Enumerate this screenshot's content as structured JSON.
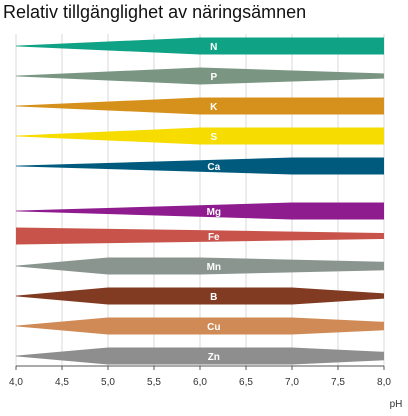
{
  "chart_data": {
    "type": "area",
    "title": "Relativ tillgänglighet av näringsämnen",
    "xlabel": "pH",
    "ylabel": "",
    "xlim": [
      4.0,
      8.0
    ],
    "x_ticks": [
      "4,0",
      "4,5",
      "5,0",
      "5,5",
      "6,0",
      "6,5",
      "7,0",
      "7,5",
      "8,0"
    ],
    "grid": true,
    "series": [
      {
        "name": "N",
        "color": "#10a284",
        "label_color": "#ffffff",
        "x": [
          4.0,
          6.0,
          8.0
        ],
        "values": [
          0.05,
          1.0,
          1.0
        ]
      },
      {
        "name": "P",
        "color": "#7a9683",
        "label_color": "#ffffff",
        "x": [
          4.0,
          6.0,
          8.0
        ],
        "values": [
          0.05,
          1.0,
          0.3
        ]
      },
      {
        "name": "K",
        "color": "#d5911c",
        "label_color": "#ffffff",
        "x": [
          4.0,
          6.0,
          8.0
        ],
        "values": [
          0.05,
          1.0,
          1.0
        ]
      },
      {
        "name": "S",
        "color": "#f6dc00",
        "label_color": "#ffffff",
        "x": [
          4.0,
          6.0,
          8.0
        ],
        "values": [
          0.05,
          1.0,
          1.0
        ]
      },
      {
        "name": "Ca",
        "color": "#005a7e",
        "label_color": "#ffffff",
        "x": [
          4.0,
          7.0,
          8.0
        ],
        "values": [
          0.05,
          1.0,
          1.0
        ]
      },
      {
        "name": "Mg",
        "color": "#8e1c8e",
        "label_color": "#ffffff",
        "x": [
          4.0,
          7.0,
          8.0
        ],
        "values": [
          0.05,
          1.0,
          1.0
        ]
      },
      {
        "name": "Fe",
        "color": "#c8534b",
        "label_color": "#ffffff",
        "x": [
          4.0,
          6.0,
          8.0
        ],
        "values": [
          1.0,
          0.7,
          0.35
        ]
      },
      {
        "name": "Mn",
        "color": "#8a9590",
        "label_color": "#ffffff",
        "x": [
          4.0,
          5.0,
          6.0,
          8.0
        ],
        "values": [
          0.05,
          1.0,
          1.0,
          0.5
        ]
      },
      {
        "name": "B",
        "color": "#813b22",
        "label_color": "#ffffff",
        "x": [
          4.0,
          5.0,
          7.0,
          8.0
        ],
        "values": [
          0.05,
          1.0,
          1.0,
          0.3
        ]
      },
      {
        "name": "Cu",
        "color": "#cf8a55",
        "label_color": "#ffffff",
        "x": [
          4.0,
          5.0,
          7.0,
          8.0
        ],
        "values": [
          0.05,
          1.0,
          1.0,
          0.5
        ]
      },
      {
        "name": "Zn",
        "color": "#8e8e8e",
        "label_color": "#ffffff",
        "x": [
          4.0,
          5.0,
          7.0,
          8.0
        ],
        "values": [
          0.05,
          1.0,
          1.0,
          0.5
        ]
      }
    ]
  }
}
